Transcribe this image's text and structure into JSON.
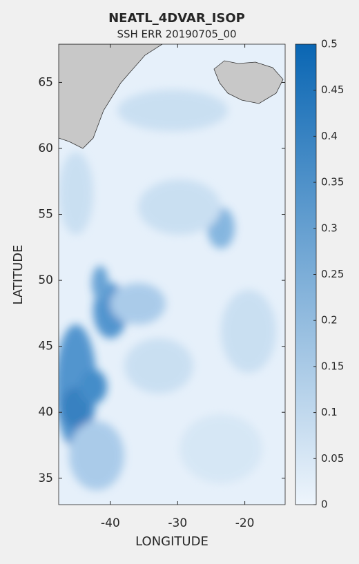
{
  "chart_data": {
    "type": "heatmap",
    "title": "NEATL_4DVAR_ISOP",
    "subtitle": "SSH ERR 20190705_00",
    "x_label": "LONGITUDE",
    "y_label": "LATITUDE",
    "xlim": [
      -47.7,
      -14
    ],
    "xticks": [
      -40,
      -30,
      -20
    ],
    "ylim": [
      33,
      67.9
    ],
    "yticks": [
      35,
      40,
      45,
      50,
      55,
      60,
      65
    ],
    "clim": [
      0,
      0.5
    ],
    "cticks": [
      0,
      0.05,
      0.1,
      0.15,
      0.2,
      0.25,
      0.3,
      0.35,
      0.4,
      0.45,
      0.5
    ],
    "colormap": [
      "#eef5fc",
      "#0a66b3"
    ]
  }
}
